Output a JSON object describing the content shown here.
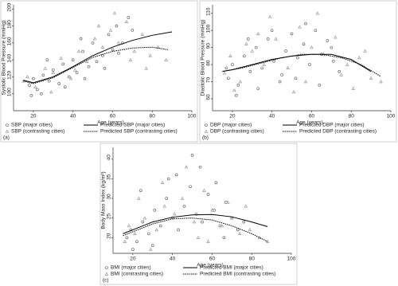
{
  "chart_data": [
    {
      "type": "scatter",
      "label": "(a)",
      "x_label": "Age (years)",
      "y_label": "Systolic Blood Pressure (mmHg)",
      "xlim": [
        10,
        100
      ],
      "ylim": [
        80,
        205
      ],
      "xticks": [
        20,
        40,
        60,
        80,
        100
      ],
      "yticks": [
        100,
        120,
        140,
        160,
        180,
        200
      ],
      "series": [
        {
          "name": "SBP (major cities)",
          "kind": "points",
          "marker": "circle",
          "color": "#555555",
          "x": [
            18,
            20,
            22,
            25,
            28,
            30,
            33,
            35,
            38,
            40,
            42,
            45,
            48,
            50,
            52,
            55,
            58,
            60,
            62,
            65,
            68,
            70,
            24,
            36,
            46,
            56,
            19,
            27,
            44,
            63
          ],
          "values": [
            110,
            118,
            105,
            122,
            115,
            128,
            112,
            135,
            120,
            140,
            125,
            150,
            132,
            160,
            138,
            145,
            170,
            152,
            180,
            160,
            190,
            175,
            100,
            108,
            118,
            130,
            98,
            140,
            165,
            148
          ]
        },
        {
          "name": "SBP (contrasting cities)",
          "kind": "points",
          "marker": "triangle",
          "color": "#8a8a8a",
          "x": [
            17,
            21,
            26,
            30,
            34,
            39,
            43,
            47,
            51,
            55,
            59,
            63,
            67,
            71,
            75,
            79,
            83,
            87,
            15,
            29,
            41,
            53,
            61,
            69,
            77
          ],
          "values": [
            120,
            108,
            130,
            125,
            142,
            118,
            150,
            138,
            165,
            155,
            175,
            160,
            185,
            150,
            170,
            145,
            155,
            140,
            115,
            102,
            128,
            180,
            195,
            140,
            130
          ]
        },
        {
          "name": "Predicted SBP (major cities)",
          "kind": "line",
          "line_style": "solid",
          "color": "#000000",
          "x": [
            15,
            20,
            30,
            40,
            50,
            60,
            70,
            80,
            90
          ],
          "values": [
            116,
            113,
            120,
            132,
            145,
            155,
            163,
            169,
            173
          ]
        },
        {
          "name": "Predicted SBP (contrasting cities)",
          "kind": "line",
          "line_style": "dotted",
          "color": "#000000",
          "x": [
            15,
            20,
            30,
            40,
            50,
            60,
            70,
            80,
            88
          ],
          "values": [
            115,
            112,
            119,
            131,
            143,
            150,
            154,
            155,
            152
          ]
        }
      ]
    },
    {
      "type": "scatter",
      "label": "(b)",
      "x_label": "Age (years)",
      "y_label": "Diastolic Blood Pressure (mmHg)",
      "xlim": [
        10,
        100
      ],
      "ylim": [
        53,
        115
      ],
      "xticks": [
        20,
        40,
        60,
        80,
        100
      ],
      "yticks": [
        60,
        70,
        80,
        90,
        100,
        110
      ],
      "series": [
        {
          "name": "DBP (major cities)",
          "kind": "points",
          "marker": "circle",
          "color": "#555555",
          "x": [
            18,
            20,
            23,
            26,
            29,
            32,
            35,
            38,
            41,
            44,
            47,
            50,
            53,
            56,
            59,
            62,
            65,
            68,
            71,
            74,
            22,
            33,
            45,
            57,
            70,
            17,
            28,
            40,
            52,
            64
          ],
          "values": [
            72,
            80,
            68,
            85,
            76,
            90,
            78,
            95,
            82,
            70,
            88,
            98,
            84,
            92,
            80,
            100,
            86,
            94,
            82,
            76,
            62,
            66,
            74,
            104,
            90,
            78,
            95,
            100,
            72,
            68
          ]
        },
        {
          "name": "DBP (contrasting cities)",
          "kind": "points",
          "marker": "triangle",
          "color": "#8a8a8a",
          "x": [
            16,
            19,
            24,
            30,
            36,
            42,
            48,
            54,
            60,
            66,
            72,
            78,
            84,
            90,
            95,
            21,
            27,
            39,
            51,
            63,
            75,
            87,
            33,
            57,
            81
          ],
          "values": [
            75,
            85,
            70,
            88,
            80,
            95,
            78,
            102,
            90,
            86,
            96,
            80,
            84,
            72,
            70,
            65,
            92,
            108,
            64,
            110,
            74,
            88,
            98,
            70,
            66
          ]
        },
        {
          "name": "Predicted DBP (major cities)",
          "kind": "line",
          "line_style": "solid",
          "color": "#000000",
          "x": [
            15,
            20,
            30,
            40,
            50,
            60,
            70,
            80,
            90
          ],
          "values": [
            76,
            77,
            80,
            83,
            85,
            86,
            86,
            83,
            76
          ]
        },
        {
          "name": "Predicted DBP (contrasting cities)",
          "kind": "line",
          "line_style": "dotted",
          "color": "#000000",
          "x": [
            15,
            25,
            35,
            45,
            55,
            65,
            75,
            85,
            95
          ],
          "values": [
            76,
            78,
            81,
            84,
            86,
            86,
            84,
            80,
            73
          ]
        }
      ]
    },
    {
      "type": "scatter",
      "label": "(c)",
      "x_label": "Age (years)",
      "y_label": "Body Mass Index (kg/m²)",
      "xlim": [
        10,
        100
      ],
      "ylim": [
        16,
        43
      ],
      "xticks": [
        20,
        40,
        60,
        80,
        100
      ],
      "yticks": [
        20,
        25,
        30,
        35,
        40
      ],
      "series": [
        {
          "name": "BMI (major cities)",
          "kind": "points",
          "marker": "circle",
          "color": "#555555",
          "x": [
            17,
            19,
            22,
            25,
            28,
            31,
            34,
            37,
            40,
            43,
            46,
            49,
            52,
            55,
            58,
            61,
            64,
            67,
            70,
            73,
            76,
            20,
            30,
            42,
            54,
            66,
            24,
            38,
            50,
            62
          ],
          "values": [
            20,
            22,
            19,
            24,
            21,
            27,
            23,
            30,
            25,
            22,
            28,
            33,
            26,
            24,
            31,
            27,
            23,
            29,
            25,
            22,
            24,
            17,
            18,
            36,
            38,
            20,
            32,
            35,
            41,
            34
          ]
        },
        {
          "name": "BMI (contrasting cities)",
          "kind": "points",
          "marker": "triangle",
          "color": "#8a8a8a",
          "x": [
            16,
            18,
            21,
            26,
            32,
            36,
            41,
            45,
            51,
            56,
            60,
            65,
            70,
            74,
            79,
            84,
            88,
            23,
            35,
            47,
            58,
            68,
            29,
            53,
            77
          ],
          "values": [
            19,
            23,
            21,
            25,
            22,
            28,
            26,
            30,
            24,
            32,
            27,
            23,
            25,
            21,
            22,
            20,
            19,
            30,
            34,
            38,
            19,
            29,
            17,
            20,
            28
          ]
        },
        {
          "name": "Predicted BMI (major cities)",
          "kind": "line",
          "line_style": "solid",
          "color": "#000000",
          "x": [
            15,
            20,
            30,
            40,
            50,
            60,
            70,
            80,
            88
          ],
          "values": [
            21,
            22,
            24,
            25.2,
            25.8,
            25.9,
            25.3,
            24,
            22.8
          ]
        },
        {
          "name": "Predicted BMI (contrasting cities)",
          "kind": "line",
          "line_style": "dotted",
          "color": "#000000",
          "x": [
            15,
            20,
            30,
            40,
            50,
            60,
            70,
            80,
            88
          ],
          "values": [
            20.5,
            21.5,
            23.5,
            24.8,
            25,
            24.5,
            23,
            21,
            19
          ]
        }
      ]
    }
  ]
}
